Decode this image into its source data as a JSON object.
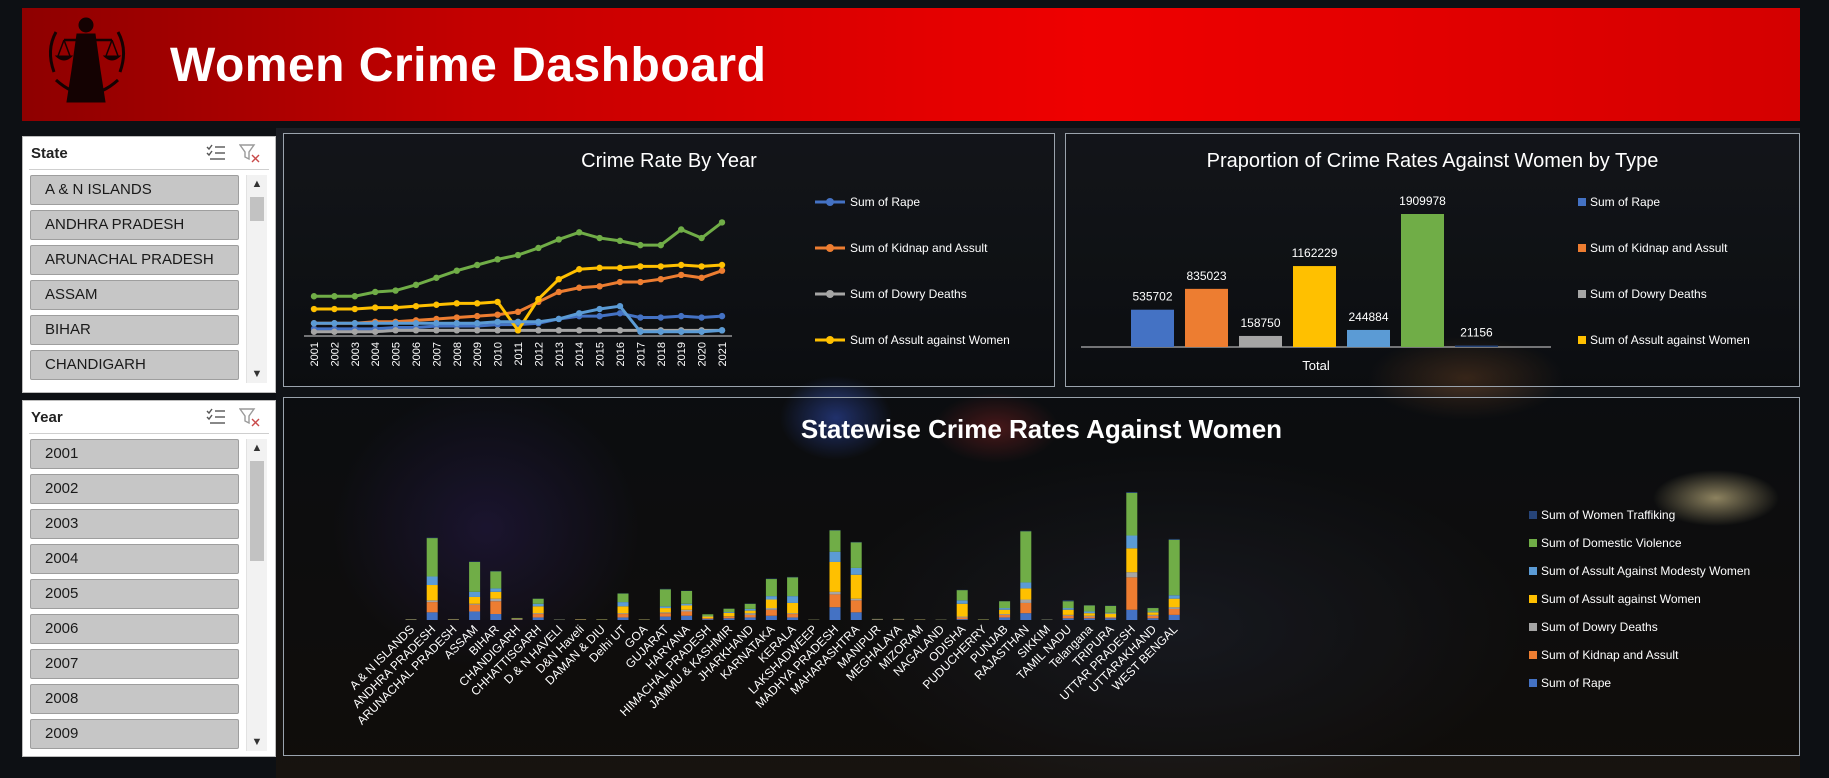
{
  "header": {
    "title": "Women Crime Dashboard",
    "logo_icon": "lady-justice-icon",
    "bg_color_left": "#8e0000",
    "bg_color_right": "#ef0000"
  },
  "slicers": [
    {
      "id": "state",
      "header": "State",
      "items": [
        "A & N ISLANDS",
        "ANDHRA PRADESH",
        "ARUNACHAL PRADESH",
        "ASSAM",
        "BIHAR",
        "CHANDIGARH"
      ],
      "icons": [
        "multi-select-icon",
        "clear-filter-icon"
      ]
    },
    {
      "id": "year",
      "header": "Year",
      "items": [
        "2001",
        "2002",
        "2003",
        "2004",
        "2005",
        "2006",
        "2007",
        "2008",
        "2009"
      ],
      "icons": [
        "multi-select-icon",
        "clear-filter-icon"
      ]
    }
  ],
  "colors": {
    "rape": "#4472c4",
    "kidnap": "#ed7d31",
    "dowry": "#a5a5a5",
    "assault": "#ffc000",
    "modesty": "#5b9bd5",
    "domestic": "#70ad47",
    "trafficking": "#264478"
  },
  "chart_data": [
    {
      "type": "line",
      "title": "Crime Rate By Year",
      "x": [
        "2001",
        "2002",
        "2003",
        "2004",
        "2005",
        "2006",
        "2007",
        "2008",
        "2009",
        "2010",
        "2011",
        "2012",
        "2013",
        "2014",
        "2015",
        "2016",
        "2017",
        "2018",
        "2019",
        "2020",
        "2021"
      ],
      "ylim": [
        0,
        100
      ],
      "legend_position": "right",
      "series": [
        {
          "name": "Sum of Rape",
          "color": "#4472c4",
          "values": [
            5,
            5,
            5,
            5,
            6,
            6,
            7,
            7,
            7,
            8,
            8,
            9,
            12,
            14,
            14,
            16,
            13,
            13,
            14,
            13,
            14
          ]
        },
        {
          "name": "Sum of Kidnap and Assult",
          "color": "#ed7d31",
          "values": [
            9,
            9,
            9,
            10,
            10,
            11,
            12,
            13,
            14,
            15,
            17,
            24,
            31,
            34,
            35,
            38,
            38,
            40,
            43,
            41,
            46
          ]
        },
        {
          "name": "Sum of Dowry Deaths",
          "color": "#a5a5a5",
          "values": [
            3,
            3,
            3,
            3,
            4,
            4,
            4,
            4,
            4,
            4,
            4,
            4,
            4,
            4,
            4,
            4,
            4,
            4,
            4,
            4,
            4
          ]
        },
        {
          "name": "Sum of Assult against Women",
          "color": "#ffc000",
          "values": [
            19,
            19,
            19,
            20,
            20,
            21,
            22,
            23,
            23,
            24,
            4,
            26,
            40,
            47,
            48,
            48,
            49,
            49,
            50,
            49,
            50
          ]
        },
        {
          "name": "",
          "color": "#5b9bd5",
          "values": [
            9,
            9,
            9,
            9,
            9,
            9,
            9,
            9,
            9,
            10,
            10,
            10,
            12,
            16,
            19,
            21,
            3,
            3,
            3,
            3,
            4
          ]
        },
        {
          "name": "",
          "color": "#70ad47",
          "values": [
            28,
            28,
            28,
            31,
            32,
            36,
            41,
            46,
            50,
            54,
            57,
            62,
            68,
            73,
            69,
            67,
            64,
            64,
            75,
            69,
            80
          ]
        }
      ]
    },
    {
      "type": "bar",
      "title": "Praportion of Crime Rates Against Women by Type",
      "categories": [
        "Total"
      ],
      "legend_position": "right",
      "series": [
        {
          "name": "Sum of Rape",
          "color": "#4472c4",
          "values": [
            535702
          ]
        },
        {
          "name": "Sum of Kidnap and Assult",
          "color": "#ed7d31",
          "values": [
            835023
          ]
        },
        {
          "name": "Sum of Dowry Deaths",
          "color": "#a5a5a5",
          "values": [
            158750
          ]
        },
        {
          "name": "Sum of Assult against Women",
          "color": "#ffc000",
          "values": [
            1162229
          ]
        },
        {
          "name": "",
          "color": "#5b9bd5",
          "values": [
            244884
          ]
        },
        {
          "name": "",
          "color": "#70ad47",
          "values": [
            1909978
          ]
        },
        {
          "name": "",
          "color": "#264478",
          "values": [
            21156
          ]
        }
      ]
    },
    {
      "type": "bar",
      "stacked": true,
      "title": "Statewise Crime Rates Against Women",
      "categories": [
        "A & N ISLANDS",
        "ANDHRA PRADESH",
        "ARUNACHAL PRADESH",
        "ASSAM",
        "BIHAR",
        "CHANDIGARH",
        "CHHATTISGARH",
        "D & N HAVELI",
        "D&N Haveli",
        "DAMAN & DIU",
        "Delhi UT",
        "GOA",
        "GUJARAT",
        "HARYANA",
        "HIMACHAL PRADESH",
        "JAMMU & KASHMIR",
        "JHARKHAND",
        "KARNATAKA",
        "KERALA",
        "LAKSHADWEEP",
        "MADHYA PRADESH",
        "MAHARASHTRA",
        "MANIPUR",
        "MEGHALAYA",
        "MIZORAM",
        "NAGALAND",
        "ODISHA",
        "PUDUCHERRY",
        "PUNJAB",
        "RAJASTHAN",
        "SIKKIM",
        "TAMIL NADU",
        "Telangana",
        "TRIPURA",
        "UTTAR PRADESH",
        "UTTARAKHAND",
        "WEST BENGAL"
      ],
      "legend_position": "right",
      "series": [
        {
          "name": "Sum of Rape",
          "color": "#4472c4",
          "values": [
            0.3,
            9,
            0.3,
            10,
            7,
            0.5,
            3,
            0.2,
            0.2,
            0.2,
            3,
            0.2,
            4,
            5,
            1,
            2,
            3,
            5,
            3,
            0.1,
            15,
            9,
            0.3,
            0.4,
            0.2,
            0.1,
            1,
            0.1,
            3,
            8,
            0.2,
            2,
            2,
            2,
            12,
            2,
            6
          ]
        },
        {
          "name": "Sum of Kidnap and Assult",
          "color": "#ed7d31",
          "values": [
            0.2,
            12,
            0.2,
            8,
            15,
            0.5,
            4,
            0.1,
            0.3,
            0.1,
            4,
            0.1,
            4,
            5,
            1,
            2,
            3,
            7,
            4,
            0.1,
            15,
            14,
            0.2,
            0.2,
            0.1,
            0.1,
            2,
            0.1,
            3,
            12,
            0.1,
            3,
            2,
            1,
            38,
            3,
            7
          ]
        },
        {
          "name": "Sum of Dowry Deaths",
          "color": "#a5a5a5",
          "values": [
            0.1,
            2,
            0.1,
            1,
            3,
            0.1,
            1,
            0.1,
            0.1,
            0.1,
            1,
            0.1,
            1,
            2,
            0.2,
            0.3,
            2,
            2,
            1,
            0.1,
            3,
            2,
            0.1,
            0.1,
            0.1,
            0.1,
            1,
            0.1,
            1,
            4,
            0.1,
            1,
            1,
            0.5,
            6,
            1,
            2
          ]
        },
        {
          "name": "Sum of Assult against Women",
          "color": "#ffc000",
          "values": [
            0.2,
            18,
            0.3,
            8,
            8,
            0.5,
            8,
            0.1,
            0.2,
            0.2,
            8,
            0.2,
            5,
            5,
            2,
            4,
            3,
            10,
            12,
            0.1,
            35,
            28,
            0.3,
            0.3,
            0.2,
            0.1,
            15,
            0.2,
            5,
            13,
            0.1,
            6,
            3,
            4,
            28,
            3,
            10
          ]
        },
        {
          "name": "Sum of Assult Against Modesty Women",
          "color": "#5b9bd5",
          "values": [
            0.1,
            10,
            0.1,
            6,
            4,
            0.3,
            3,
            0.1,
            0.1,
            0.1,
            5,
            0.1,
            2,
            2,
            0.5,
            1,
            2,
            4,
            8,
            0.1,
            12,
            8,
            0.2,
            0.1,
            0.1,
            0.1,
            4,
            0.1,
            2,
            7,
            0.1,
            2,
            2,
            1,
            15,
            1,
            4
          ]
        },
        {
          "name": "Sum of Domestic Violence",
          "color": "#70ad47",
          "values": [
            0.2,
            45,
            0.2,
            35,
            20,
            0.5,
            6,
            0.1,
            0.2,
            0.2,
            10,
            0.1,
            20,
            15,
            2,
            4,
            6,
            20,
            22,
            0.1,
            25,
            30,
            0.2,
            0.2,
            0.1,
            0.1,
            12,
            0.2,
            8,
            60,
            0.1,
            8,
            7,
            8,
            50,
            4,
            65
          ]
        },
        {
          "name": "Sum of Women Traffiking",
          "color": "#264478",
          "values": [
            0,
            0.5,
            0,
            0.5,
            0.5,
            0,
            0.2,
            0,
            0,
            0,
            0.3,
            0,
            0.5,
            0.3,
            0,
            0.2,
            0.3,
            0.5,
            0.5,
            0,
            0.5,
            0.5,
            0,
            0,
            0,
            0,
            0.3,
            0,
            0.2,
            0.5,
            0,
            1,
            0.3,
            0.3,
            1,
            0.2,
            1
          ]
        }
      ]
    }
  ]
}
